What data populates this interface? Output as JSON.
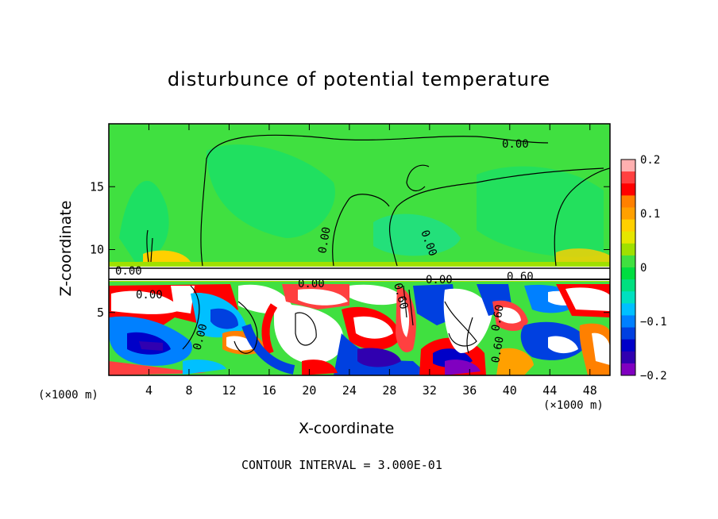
{
  "chart_data": {
    "type": "heatmap",
    "title": "disturbunce of potential temperature",
    "xlabel": "X-coordinate",
    "ylabel": "Z-coordinate",
    "x_unit": "(×1000 m)",
    "x_unit_right": "(×1000 m)",
    "xlim": [
      0,
      50
    ],
    "ylim": [
      0,
      20
    ],
    "x_ticks": [
      4,
      8,
      12,
      16,
      20,
      24,
      28,
      32,
      36,
      40,
      44,
      48
    ],
    "y_ticks": [
      5,
      10,
      15
    ],
    "colorbar": {
      "range": [
        -0.2,
        0.2
      ],
      "tick_labels": [
        "0.2",
        "0.1",
        "0",
        "−0.1",
        "−0.2"
      ],
      "tick_values": [
        0.2,
        0.1,
        0,
        -0.1,
        -0.2
      ],
      "colors": [
        "#ffb0b0",
        "#ff4040",
        "#ff0000",
        "#ff8000",
        "#ffa000",
        "#ffd000",
        "#e6e600",
        "#a0e000",
        "#40e040",
        "#00dd40",
        "#00e080",
        "#00e0c0",
        "#00c0ff",
        "#0080ff",
        "#0040e0",
        "#0000c8",
        "#3000b0",
        "#8000c0"
      ]
    },
    "contour_labels": [
      "0.00",
      "0.00",
      "0.00",
      "0.00",
      "0.00",
      "0.00",
      "0.00",
      "0.00",
      "0.60",
      "0.60",
      "0.60",
      "0.60"
    ],
    "contour_interval_text": "CONTOUR INTERVAL = 3.000E-01"
  }
}
